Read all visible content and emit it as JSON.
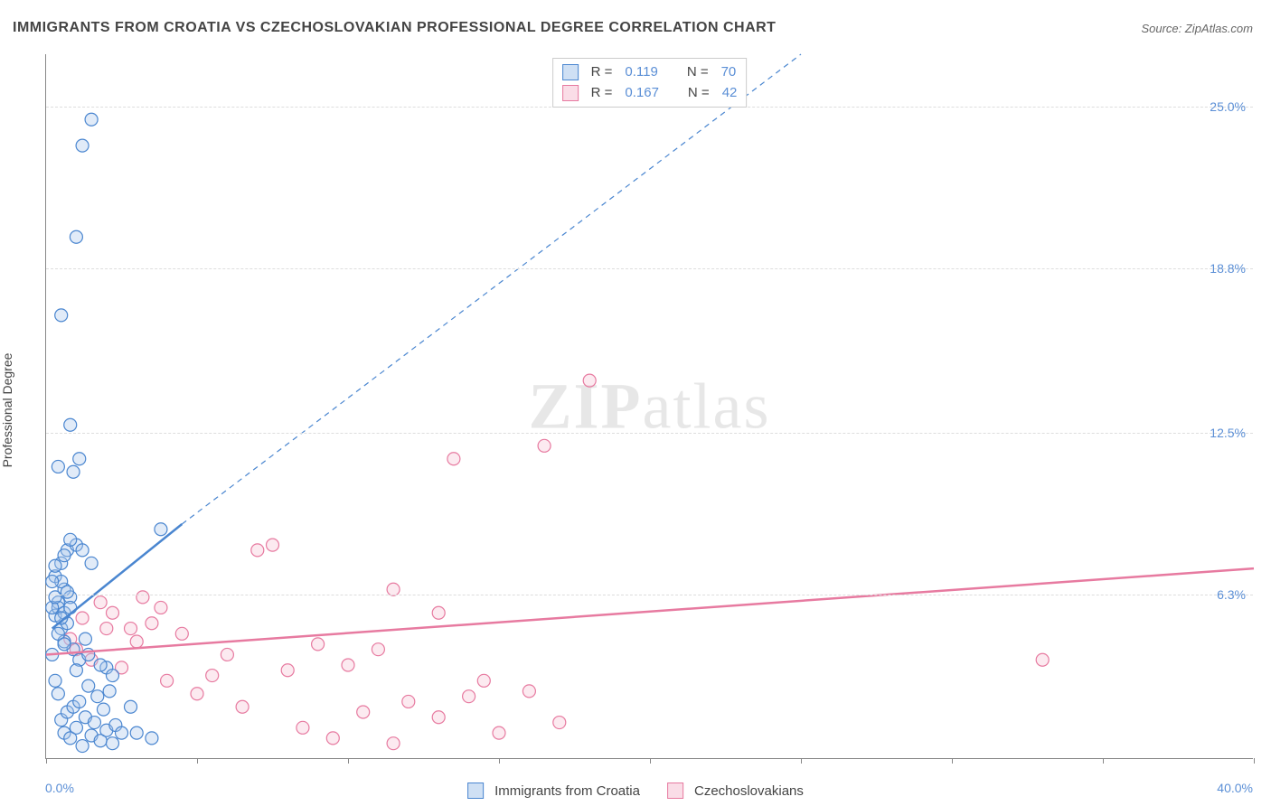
{
  "title": "IMMIGRANTS FROM CROATIA VS CZECHOSLOVAKIAN PROFESSIONAL DEGREE CORRELATION CHART",
  "source_label": "Source: ",
  "source_value": "ZipAtlas.com",
  "watermark_zip": "ZIP",
  "watermark_atlas": "atlas",
  "y_axis_label": "Professional Degree",
  "chart": {
    "type": "scatter",
    "xlim": [
      0,
      40
    ],
    "ylim": [
      0,
      27
    ],
    "x_origin_label": "0.0%",
    "x_max_label": "40.0%",
    "x_ticks": [
      0,
      5,
      10,
      15,
      20,
      25,
      30,
      35,
      40
    ],
    "y_gridlines": [
      6.3,
      12.5,
      18.8,
      25.0
    ],
    "y_tick_labels": [
      "6.3%",
      "12.5%",
      "18.8%",
      "25.0%"
    ],
    "background_color": "#ffffff",
    "grid_color": "#dddddd",
    "axis_color": "#888888",
    "tick_label_color": "#5b8fd6",
    "marker_radius": 7,
    "marker_stroke_width": 1.2,
    "marker_fill_opacity": 0.35,
    "trend_solid_width": 2.5,
    "trend_dash_width": 1.2,
    "trend_dash_pattern": "6,5"
  },
  "series": {
    "croatia": {
      "label": "Immigrants from Croatia",
      "color_stroke": "#4a86d0",
      "color_fill": "#a8c6ea",
      "swatch_fill": "#cfe0f4",
      "swatch_border": "#4a86d0",
      "R_label": "R = ",
      "R_value": "0.119",
      "N_label": "N = ",
      "N_value": "70",
      "trend_solid": {
        "x1": 0.2,
        "y1": 5.0,
        "x2": 4.5,
        "y2": 9.0
      },
      "trend_dashed": {
        "x1": 4.5,
        "y1": 9.0,
        "x2": 25.0,
        "y2": 27.0
      },
      "points": [
        [
          0.3,
          5.5
        ],
        [
          0.4,
          6.0
        ],
        [
          0.5,
          5.0
        ],
        [
          0.6,
          6.5
        ],
        [
          0.2,
          4.0
        ],
        [
          0.3,
          7.0
        ],
        [
          0.4,
          5.8
        ],
        [
          0.5,
          6.8
        ],
        [
          0.6,
          4.5
        ],
        [
          0.7,
          5.2
        ],
        [
          0.8,
          6.2
        ],
        [
          0.3,
          3.0
        ],
        [
          0.4,
          2.5
        ],
        [
          0.5,
          1.5
        ],
        [
          0.6,
          1.0
        ],
        [
          0.7,
          1.8
        ],
        [
          0.8,
          0.8
        ],
        [
          0.9,
          2.0
        ],
        [
          1.0,
          1.2
        ],
        [
          1.1,
          2.2
        ],
        [
          1.2,
          0.5
        ],
        [
          1.3,
          1.6
        ],
        [
          1.4,
          2.8
        ],
        [
          1.5,
          0.9
        ],
        [
          1.6,
          1.4
        ],
        [
          1.7,
          2.4
        ],
        [
          1.8,
          0.7
        ],
        [
          1.9,
          1.9
        ],
        [
          2.0,
          1.1
        ],
        [
          2.1,
          2.6
        ],
        [
          2.2,
          0.6
        ],
        [
          2.3,
          1.3
        ],
        [
          0.5,
          7.5
        ],
        [
          0.7,
          8.0
        ],
        [
          0.9,
          11.0
        ],
        [
          1.1,
          11.5
        ],
        [
          0.8,
          12.8
        ],
        [
          0.5,
          17.0
        ],
        [
          1.5,
          7.5
        ],
        [
          2.0,
          3.5
        ],
        [
          2.5,
          1.0
        ],
        [
          1.0,
          8.2
        ],
        [
          1.2,
          8.0
        ],
        [
          0.4,
          4.8
        ],
        [
          0.6,
          5.6
        ],
        [
          0.2,
          6.8
        ],
        [
          0.3,
          7.4
        ],
        [
          0.5,
          5.4
        ],
        [
          0.7,
          6.4
        ],
        [
          0.9,
          4.2
        ],
        [
          1.1,
          3.8
        ],
        [
          1.3,
          4.6
        ],
        [
          3.0,
          1.0
        ],
        [
          3.5,
          0.8
        ],
        [
          2.8,
          2.0
        ],
        [
          2.2,
          3.2
        ],
        [
          1.8,
          3.6
        ],
        [
          1.4,
          4.0
        ],
        [
          0.6,
          7.8
        ],
        [
          0.8,
          8.4
        ],
        [
          1.0,
          3.4
        ],
        [
          0.4,
          11.2
        ],
        [
          0.6,
          4.4
        ],
        [
          0.2,
          5.8
        ],
        [
          1.5,
          24.5
        ],
        [
          1.2,
          23.5
        ],
        [
          1.0,
          20.0
        ],
        [
          3.8,
          8.8
        ],
        [
          0.8,
          5.8
        ],
        [
          0.3,
          6.2
        ]
      ]
    },
    "czech": {
      "label": "Czechoslovakians",
      "color_stroke": "#e77aa0",
      "color_fill": "#f6c3d5",
      "swatch_fill": "#fadde7",
      "swatch_border": "#e77aa0",
      "R_label": "R = ",
      "R_value": "0.167",
      "N_label": "N = ",
      "N_value": "42",
      "trend_solid": {
        "x1": 0.0,
        "y1": 4.0,
        "x2": 40.0,
        "y2": 7.3
      },
      "points": [
        [
          1.0,
          4.2
        ],
        [
          1.5,
          3.8
        ],
        [
          2.0,
          5.0
        ],
        [
          2.5,
          3.5
        ],
        [
          3.0,
          4.5
        ],
        [
          3.5,
          5.2
        ],
        [
          4.0,
          3.0
        ],
        [
          4.5,
          4.8
        ],
        [
          5.0,
          2.5
        ],
        [
          5.5,
          3.2
        ],
        [
          6.0,
          4.0
        ],
        [
          6.5,
          2.0
        ],
        [
          7.0,
          8.0
        ],
        [
          7.5,
          8.2
        ],
        [
          8.0,
          3.4
        ],
        [
          8.5,
          1.2
        ],
        [
          9.0,
          4.4
        ],
        [
          9.5,
          0.8
        ],
        [
          10.0,
          3.6
        ],
        [
          10.5,
          1.8
        ],
        [
          11.0,
          4.2
        ],
        [
          11.5,
          0.6
        ],
        [
          12.0,
          2.2
        ],
        [
          13.0,
          1.6
        ],
        [
          14.0,
          2.4
        ],
        [
          13.5,
          11.5
        ],
        [
          16.5,
          12.0
        ],
        [
          15.0,
          1.0
        ],
        [
          16.0,
          2.6
        ],
        [
          17.0,
          1.4
        ],
        [
          18.0,
          14.5
        ],
        [
          14.5,
          3.0
        ],
        [
          13.0,
          5.6
        ],
        [
          11.5,
          6.5
        ],
        [
          33.0,
          3.8
        ],
        [
          1.2,
          5.4
        ],
        [
          1.8,
          6.0
        ],
        [
          2.2,
          5.6
        ],
        [
          2.8,
          5.0
        ],
        [
          3.2,
          6.2
        ],
        [
          3.8,
          5.8
        ],
        [
          0.8,
          4.6
        ]
      ]
    }
  },
  "bottom_legend": {
    "items": [
      {
        "key": "croatia"
      },
      {
        "key": "czech"
      }
    ]
  }
}
